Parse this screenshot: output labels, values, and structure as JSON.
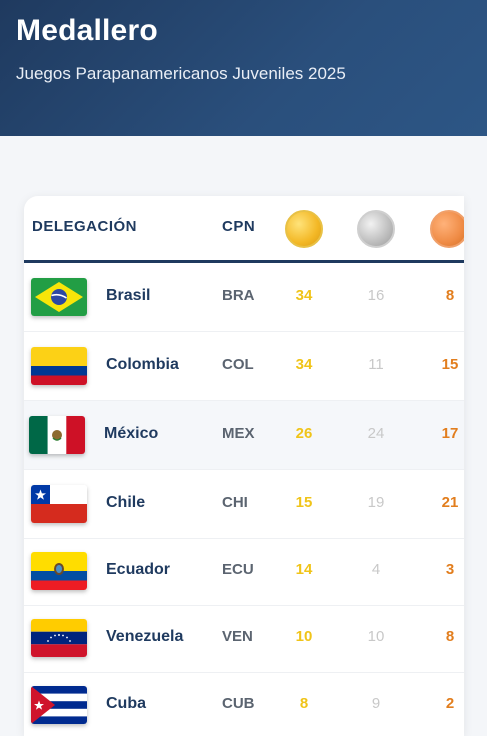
{
  "header": {
    "title": "Medallero",
    "subtitle": "Juegos Parapanamericanos Juveniles 2025"
  },
  "table": {
    "col_delegation": "DELEGACIÓN",
    "col_code": "CPN",
    "medal_icons": [
      "gold-medal-icon",
      "silver-medal-icon",
      "bronze-medal-icon"
    ],
    "rows": [
      {
        "country": "Brasil",
        "code": "BRA",
        "gold": "34",
        "silver": "16",
        "bronze": "8"
      },
      {
        "country": "Colombia",
        "code": "COL",
        "gold": "34",
        "silver": "11",
        "bronze": "15"
      },
      {
        "country": "México",
        "code": "MEX",
        "gold": "26",
        "silver": "24",
        "bronze": "17"
      },
      {
        "country": "Chile",
        "code": "CHI",
        "gold": "15",
        "silver": "19",
        "bronze": "21"
      },
      {
        "country": "Ecuador",
        "code": "ECU",
        "gold": "14",
        "silver": "4",
        "bronze": "3"
      },
      {
        "country": "Venezuela",
        "code": "VEN",
        "gold": "10",
        "silver": "10",
        "bronze": "8"
      },
      {
        "country": "Cuba",
        "code": "CUB",
        "gold": "8",
        "silver": "9",
        "bronze": "2"
      }
    ]
  },
  "colors": {
    "header_bg": "#1f3a5f",
    "gold": "#f0c419",
    "silver": "#c8c8c8",
    "bronze": "#e27e1e"
  }
}
